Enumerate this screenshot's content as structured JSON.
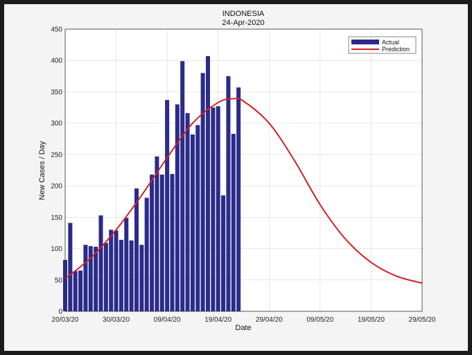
{
  "chart_data": {
    "type": "bar",
    "title": "INDONESIA",
    "subtitle": "24-Apr-2020",
    "xlabel": "Date",
    "ylabel": "New Cases / Day",
    "ylim": [
      0,
      450
    ],
    "yticks": [
      0,
      50,
      100,
      150,
      200,
      250,
      300,
      350,
      400,
      450
    ],
    "xlim": [
      "2020-03-20",
      "2020-05-29"
    ],
    "xticks": [
      "20/03/20",
      "30/03/20",
      "09/04/20",
      "19/04/20",
      "29/04/20",
      "09/05/20",
      "19/05/20",
      "29/05/20"
    ],
    "grid": true,
    "legend_position": "top-right",
    "series": [
      {
        "name": "Actual",
        "kind": "bar",
        "color": "#2b2b8a",
        "x": [
          "2020-03-20",
          "2020-03-21",
          "2020-03-22",
          "2020-03-23",
          "2020-03-24",
          "2020-03-25",
          "2020-03-26",
          "2020-03-27",
          "2020-03-28",
          "2020-03-29",
          "2020-03-30",
          "2020-03-31",
          "2020-04-01",
          "2020-04-02",
          "2020-04-03",
          "2020-04-04",
          "2020-04-05",
          "2020-04-06",
          "2020-04-07",
          "2020-04-08",
          "2020-04-09",
          "2020-04-10",
          "2020-04-11",
          "2020-04-12",
          "2020-04-13",
          "2020-04-14",
          "2020-04-15",
          "2020-04-16",
          "2020-04-17",
          "2020-04-18",
          "2020-04-19",
          "2020-04-20",
          "2020-04-21",
          "2020-04-22",
          "2020-04-23",
          "2020-04-24"
        ],
        "values": [
          82,
          141,
          64,
          65,
          106,
          104,
          103,
          153,
          109,
          130,
          129,
          114,
          149,
          113,
          196,
          106,
          181,
          218,
          247,
          218,
          337,
          219,
          330,
          399,
          316,
          282,
          297,
          380,
          407,
          325,
          327,
          185,
          375,
          283,
          357,
          0
        ]
      },
      {
        "name": "Prediction",
        "kind": "line",
        "color": "#d42020",
        "x": [
          "2020-03-20",
          "2020-03-25",
          "2020-03-30",
          "2020-04-04",
          "2020-04-09",
          "2020-04-14",
          "2020-04-19",
          "2020-04-22",
          "2020-04-24",
          "2020-04-29",
          "2020-05-04",
          "2020-05-09",
          "2020-05-14",
          "2020-05-19",
          "2020-05-24",
          "2020-05-29"
        ],
        "values": [
          52,
          85,
          130,
          185,
          245,
          300,
          333,
          339,
          335,
          300,
          240,
          170,
          115,
          78,
          56,
          45
        ]
      }
    ]
  }
}
